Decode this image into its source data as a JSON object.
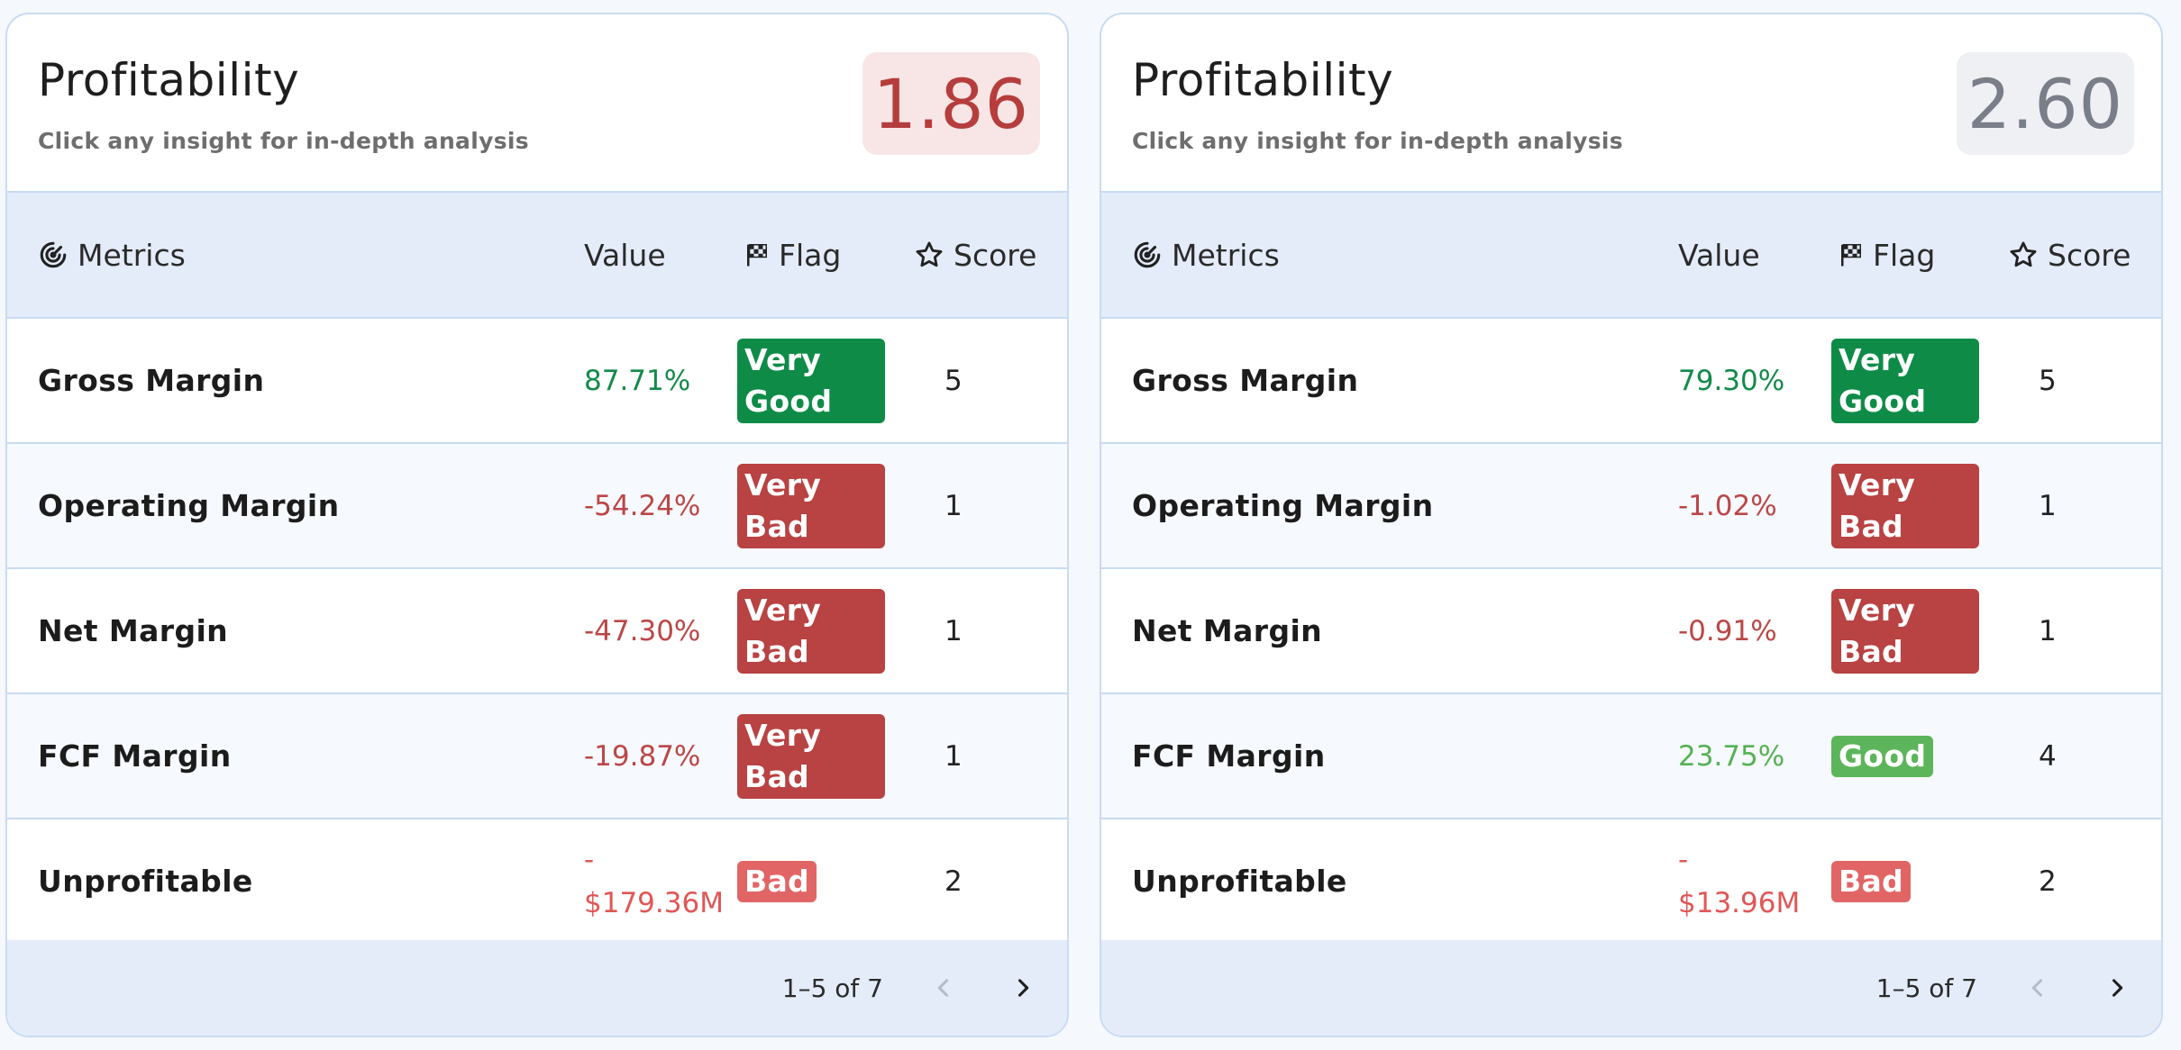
{
  "cards": [
    {
      "title": "Profitability",
      "subtitle": "Click any insight for in-depth analysis",
      "score": "1.86",
      "score_color": "#b63d3d",
      "headers": {
        "metrics": "Metrics",
        "value": "Value",
        "flag": "Flag",
        "score": "Score"
      },
      "rows": [
        {
          "name": "Gross Margin",
          "value": "87.71%",
          "flag": "Very Good",
          "score": "5"
        },
        {
          "name": "Operating Margin",
          "value": "-54.24%",
          "flag": "Very Bad",
          "score": "1"
        },
        {
          "name": "Net Margin",
          "value": "-47.30%",
          "flag": "Very Bad",
          "score": "1"
        },
        {
          "name": "FCF Margin",
          "value": "-19.87%",
          "flag": "Very Bad",
          "score": "1"
        },
        {
          "name": "Unprofitable",
          "value_line1": "-",
          "value_line2": "$179.36M",
          "flag": "Bad",
          "score": "2"
        }
      ],
      "pagination": "1–5 of 7"
    },
    {
      "title": "Profitability",
      "subtitle": "Click any insight for in-depth analysis",
      "score": "2.60",
      "score_color": "#797e88",
      "headers": {
        "metrics": "Metrics",
        "value": "Value",
        "flag": "Flag",
        "score": "Score"
      },
      "rows": [
        {
          "name": "Gross Margin",
          "value": "79.30%",
          "flag": "Very Good",
          "score": "5"
        },
        {
          "name": "Operating Margin",
          "value": "-1.02%",
          "flag": "Very Bad",
          "score": "1"
        },
        {
          "name": "Net Margin",
          "value": "-0.91%",
          "flag": "Very Bad",
          "score": "1"
        },
        {
          "name": "FCF Margin",
          "value": "23.75%",
          "flag": "Good",
          "score": "4"
        },
        {
          "name": "Unprofitable",
          "value_line1": "-",
          "value_line2": "$13.96M",
          "flag": "Bad",
          "score": "2"
        }
      ],
      "pagination": "1–5 of 7"
    }
  ],
  "flag_colors": {
    "very_good": "#0e8c47",
    "very_bad": "#b94242",
    "bad": "#e26565",
    "good": "#5cb55a"
  },
  "icons": {
    "metrics": "radar-icon",
    "flag": "checkered-flag-icon",
    "score": "star-outline-icon",
    "prev": "chevron-left-icon",
    "next": "chevron-right-icon"
  }
}
